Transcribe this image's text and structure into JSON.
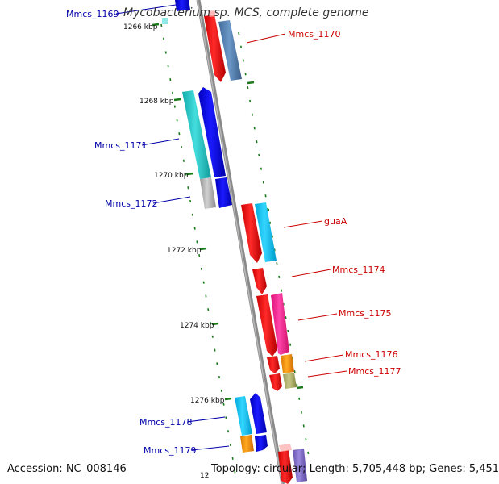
{
  "title": "Mycobacterium sp. MCS, complete genome",
  "accession": "Accession: NC_008146",
  "topology": "Topology: circular; Length: 5,705,448 bp; Genes: 5,451",
  "ruler_labels": [
    "1266 kbp",
    "1268 kbp",
    "1270 kbp",
    "1272 kbp",
    "1274 kbp",
    "1276 kbp",
    "12"
  ],
  "gene_labels": {
    "mmcs_1169": "Mmcs_1169",
    "mmcs_1170": "Mmcs_1170",
    "mmcs_1171": "Mmcs_1171",
    "mmcs_1172": "Mmcs_1172",
    "guaa": "guaA",
    "mmcs_1174": "Mmcs_1174",
    "mmcs_1175": "Mmcs_1175",
    "mmcs_1176": "Mmcs_1176",
    "mmcs_1177": "Mmcs_1177",
    "mmcs_1178": "Mmcs_1178",
    "mmcs_1179": "Mmcs_1179"
  },
  "colors": {
    "forward_label": "#cc0000",
    "reverse_label": "#0000aa",
    "tick": "#1a7a1a",
    "backbone": "#808080",
    "red_gene": "#ff0000",
    "blue_gene": "#0000ee",
    "cyan_gene": "#00ccee",
    "teal_gene": "#22cccc",
    "steel_gene": "#5a86b8",
    "pink_gene": "#ff3399",
    "orange_gene": "#ff9900",
    "olive_gene": "#bbbb77",
    "gray_gene": "#bbbbbb",
    "purple_gene": "#8877cc"
  }
}
